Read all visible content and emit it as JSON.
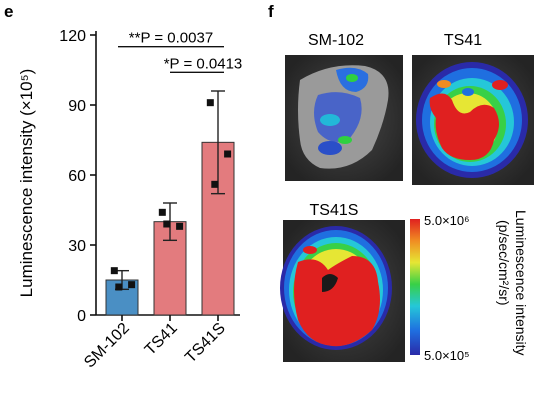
{
  "panels": {
    "e": {
      "letter": "e",
      "chart_data": {
        "type": "bar",
        "title": "",
        "xlabel": "",
        "ylabel": "Luminescence intensity (×10⁵)",
        "ylim": [
          0,
          120
        ],
        "yticks": [
          0,
          30,
          60,
          90,
          120
        ],
        "categories": [
          "SM-102",
          "TS41",
          "TS41S"
        ],
        "series": [
          {
            "values": [
              15,
              40,
              74
            ],
            "errors": [
              4,
              8,
              22
            ],
            "points": [
              [
                19,
                13,
                12
              ],
              [
                44,
                38,
                39
              ],
              [
                91,
                69,
                56
              ]
            ],
            "colors": [
              "#4a8fc4",
              "#e37b7e",
              "#e37b7e"
            ]
          }
        ],
        "annotations": [
          {
            "text": "**P = 0.0037",
            "from": "SM-102",
            "to": "TS41S",
            "y": 115
          },
          {
            "text": "*P = 0.0413",
            "from": "TS41",
            "to": "TS41S",
            "y": 104
          }
        ],
        "grid": false,
        "legend": "none"
      }
    },
    "f": {
      "letter": "f",
      "images": [
        {
          "title": "SM-102"
        },
        {
          "title": "TS41"
        },
        {
          "title": "TS41S"
        }
      ],
      "colorbar": {
        "max_label": "5.0×10⁶",
        "min_label": "5.0×10⁵",
        "label": "Luminescence intensity",
        "unit": "(p/sec/cm²/sr)"
      }
    }
  }
}
